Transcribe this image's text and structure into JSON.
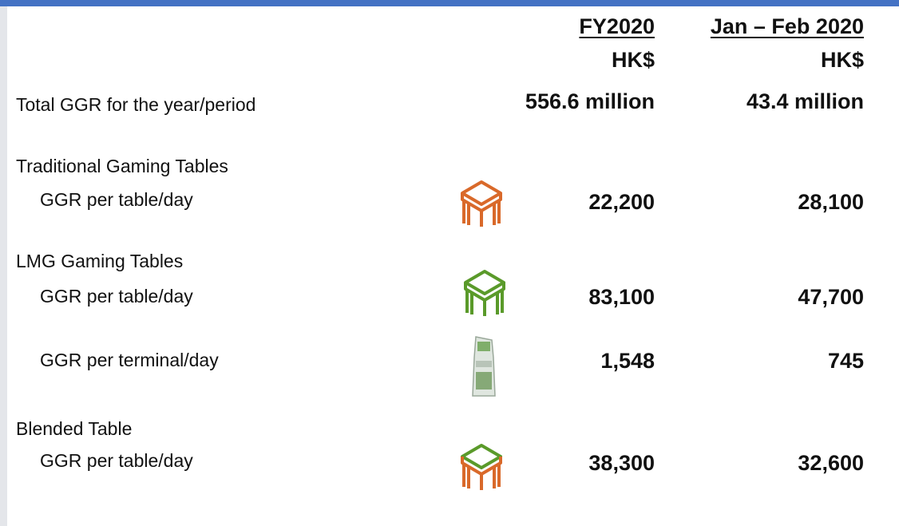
{
  "columns": [
    {
      "period": "FY2020",
      "currency": "HK$"
    },
    {
      "period": "Jan – Feb 2020",
      "currency": "HK$"
    }
  ],
  "rows": [
    {
      "label": "Total GGR for the year/period",
      "values": [
        "556.6 million",
        "43.4 million"
      ]
    },
    {
      "group": "Traditional Gaming Tables",
      "label": "GGR per table/day",
      "values": [
        "22,200",
        "28,100"
      ]
    },
    {
      "group": "LMG Gaming Tables",
      "label": "GGR per table/day",
      "values": [
        "83,100",
        "47,700"
      ]
    },
    {
      "label": "GGR per terminal/day",
      "values": [
        "1,548",
        "745"
      ]
    },
    {
      "group": "Blended Table",
      "label": "GGR per table/day",
      "values": [
        "38,300",
        "32,600"
      ]
    }
  ]
}
